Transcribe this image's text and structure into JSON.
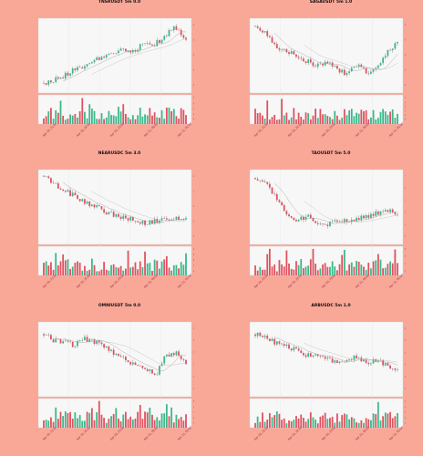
{
  "charts": [
    {
      "title": "TNSRUSDT 5m 0.0",
      "y_ticks": [
        "0.177",
        "0.176",
        "0.175",
        "0.174",
        "0.173"
      ],
      "vol_ticks": [
        "250000",
        "200000",
        "150000",
        "100000",
        "50000"
      ],
      "ylabel": "Price",
      "vlabel": "Volume",
      "x_ticks": [
        "Apr 10, 21:00",
        "Apr 10, 22:00",
        "Apr 10, 23:00",
        "Apr 11, 00:00",
        "Apr 11, 01:00"
      ],
      "colors": {
        "up": "#3cb88a",
        "down": "#e0525f"
      }
    },
    {
      "title": "SAGAUSDT 5m 1.0",
      "y_ticks": [
        "0.212",
        "0.211",
        "0.210",
        "0.209",
        "0.208"
      ],
      "vol_ticks": [
        "300000",
        "250000",
        "200000",
        "150000",
        "100000",
        "50000"
      ],
      "ylabel": "Price",
      "vlabel": "Volume",
      "x_ticks": [
        "Apr 10, 21:00",
        "Apr 10, 22:00",
        "Apr 10, 23:00",
        "Apr 11, 00:00",
        "Apr 11, 01:00"
      ],
      "colors": {
        "up": "#3cb88a",
        "down": "#e0525f"
      }
    },
    {
      "title": "NEARUSDC 5m 3.0",
      "y_ticks": [
        "2.185",
        "2.180",
        "2.175",
        "2.170",
        "2.165"
      ],
      "vol_ticks": [
        "10000",
        "8000",
        "6000",
        "4000",
        "2000"
      ],
      "ylabel": "Price",
      "vlabel": "Volume",
      "x_ticks": [
        "Apr 10, 21:00",
        "Apr 10, 22:00",
        "Apr 10, 23:00",
        "Apr 11, 00:00",
        "Apr 11, 01:00"
      ],
      "colors": {
        "up": "#3cb88a",
        "down": "#e0525f"
      }
    },
    {
      "title": "TAOUSDT 5m 5.0",
      "y_ticks": [
        "358",
        "356",
        "354",
        "352",
        "350",
        "348"
      ],
      "vol_ticks": [
        "800",
        "600",
        "400",
        "200"
      ],
      "ylabel": "Price",
      "vlabel": "Volume",
      "x_ticks": [
        "Apr 10, 21:00",
        "Apr 10, 22:00",
        "Apr 10, 23:00",
        "Apr 11, 00:00",
        "Apr 11, 01:00"
      ],
      "colors": {
        "up": "#3cb88a",
        "down": "#e0525f"
      }
    },
    {
      "title": "OMNIUSDT 5m 0.0",
      "y_ticks": [
        "1.80",
        "1.79",
        "1.78",
        "1.77",
        "1.76",
        "1.75"
      ],
      "vol_ticks": [
        "50000",
        "40000",
        "30000",
        "20000",
        "10000"
      ],
      "ylabel": "Price",
      "vlabel": "Volume",
      "x_ticks": [
        "Apr 10, 21:00",
        "Apr 10, 22:00",
        "Apr 10, 23:00",
        "Apr 11, 00:00",
        "Apr 11, 01:00"
      ],
      "colors": {
        "up": "#3cb88a",
        "down": "#e0525f"
      }
    },
    {
      "title": "ARBUSDC 5m 1.0",
      "y_ticks": [
        "0.2980",
        "0.2975",
        "0.2970",
        "0.2965",
        "0.2960",
        "0.2955"
      ],
      "vol_ticks": [
        "250000",
        "200000",
        "150000",
        "100000",
        "50000"
      ],
      "ylabel": "Price",
      "vlabel": "Volume",
      "x_ticks": [
        "Apr 10, 21:00",
        "Apr 10, 22:00",
        "Apr 10, 23:00",
        "Apr 11, 00:00",
        "Apr 11, 01:00"
      ],
      "colors": {
        "up": "#3cb88a",
        "down": "#e0525f"
      }
    }
  ],
  "chart_data": [
    {
      "type": "candlestick",
      "title": "TNSRUSDT 5m 0.0",
      "ylabel": "Price",
      "trend": [
        0.05,
        0.12,
        0.2,
        0.3,
        0.35,
        0.45,
        0.55,
        0.6,
        0.52,
        0.7,
        0.65,
        0.8,
        0.95,
        0.75
      ]
    },
    {
      "type": "candlestick",
      "title": "SAGAUSDT 5m 1.0",
      "ylabel": "Price",
      "trend": [
        0.95,
        0.85,
        0.65,
        0.6,
        0.5,
        0.42,
        0.35,
        0.4,
        0.3,
        0.2,
        0.35,
        0.25,
        0.3,
        0.55,
        0.7
      ]
    },
    {
      "type": "candlestick",
      "title": "NEARUSDC 5m 3.0",
      "ylabel": "Price",
      "trend": [
        0.98,
        0.85,
        0.75,
        0.65,
        0.55,
        0.48,
        0.4,
        0.35,
        0.3,
        0.25,
        0.28,
        0.3,
        0.35,
        0.3
      ]
    },
    {
      "type": "candlestick",
      "title": "TAOUSDT 5m 5.0",
      "ylabel": "Price",
      "trend": [
        0.95,
        0.9,
        0.6,
        0.35,
        0.3,
        0.35,
        0.2,
        0.25,
        0.3,
        0.3,
        0.35,
        0.4,
        0.45,
        0.42
      ]
    },
    {
      "type": "candlestick",
      "title": "OMNIUSDT 5m 0.0",
      "ylabel": "Price",
      "trend": [
        0.9,
        0.8,
        0.78,
        0.72,
        0.82,
        0.78,
        0.7,
        0.6,
        0.5,
        0.4,
        0.35,
        0.25,
        0.55,
        0.6,
        0.45
      ]
    },
    {
      "type": "candlestick",
      "title": "ARBUSDC 5m 1.0",
      "ylabel": "Price",
      "trend": [
        0.9,
        0.85,
        0.75,
        0.7,
        0.65,
        0.55,
        0.6,
        0.5,
        0.45,
        0.5,
        0.55,
        0.45,
        0.5,
        0.4,
        0.35
      ]
    }
  ]
}
